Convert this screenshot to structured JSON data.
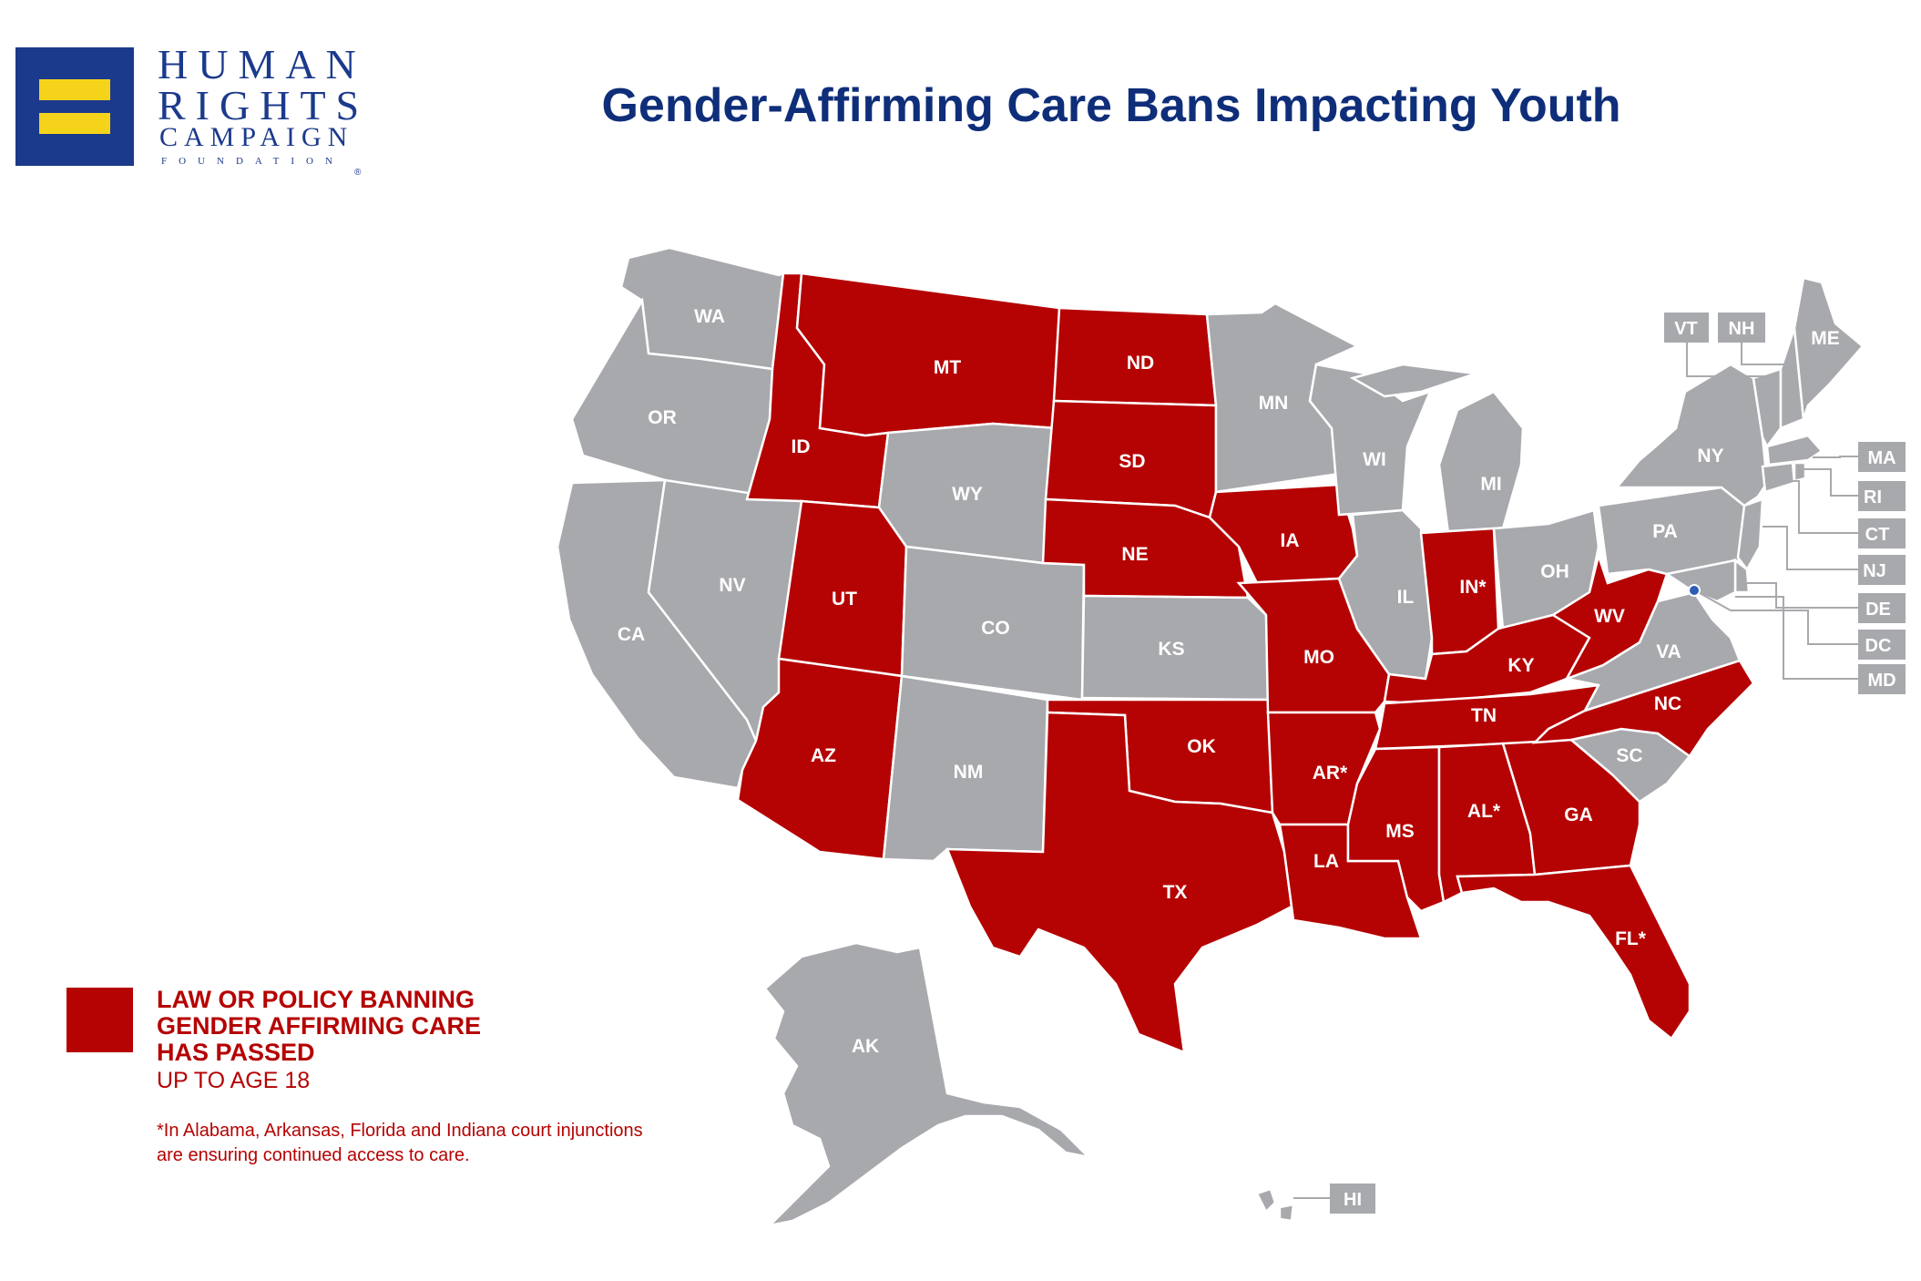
{
  "header": {
    "org_line1": "HUMAN",
    "org_line2": "RIGHTS",
    "org_line3": "CAMPAIGN",
    "org_line4": "FOUNDATION",
    "registered_mark": "®",
    "title": "Gender-Affirming Care Bans Impacting Youth"
  },
  "colors": {
    "ban": "#b50202",
    "no_ban": "#a8a9ad",
    "brand_blue": "#1b3a8c",
    "brand_yellow": "#f5d31a"
  },
  "states": {
    "WA": "WA",
    "OR": "OR",
    "CA": "CA",
    "NV": "NV",
    "ID": "ID",
    "MT": "MT",
    "WY": "WY",
    "UT": "UT",
    "AZ": "AZ",
    "CO": "CO",
    "NM": "NM",
    "ND": "ND",
    "SD": "SD",
    "NE": "NE",
    "KS": "KS",
    "OK": "OK",
    "TX": "TX",
    "MN": "MN",
    "IA": "IA",
    "MO": "MO",
    "AR": "AR*",
    "LA": "LA",
    "WI": "WI",
    "IL": "IL",
    "MI": "MI",
    "IN": "IN*",
    "OH": "OH",
    "KY": "KY",
    "TN": "TN",
    "MS": "MS",
    "AL": "AL*",
    "GA": "GA",
    "FL": "FL*",
    "SC": "SC",
    "NC": "NC",
    "VA": "VA",
    "WV": "WV",
    "PA": "PA",
    "NY": "NY",
    "ME": "ME",
    "AK": "AK"
  },
  "callouts": {
    "VT": "VT",
    "NH": "NH",
    "MA": "MA",
    "RI": "RI",
    "CT": "CT",
    "NJ": "NJ",
    "DE": "DE",
    "DC": "DC",
    "MD": "MD",
    "HI": "HI"
  },
  "legend": {
    "title": "LAW OR POLICY BANNING\nGENDER AFFIRMING CARE\nHAS PASSED",
    "subtitle": "UP TO AGE 18",
    "footnote": "*In Alabama, Arkansas, Florida and Indiana court injunctions are ensuring continued access to care."
  }
}
